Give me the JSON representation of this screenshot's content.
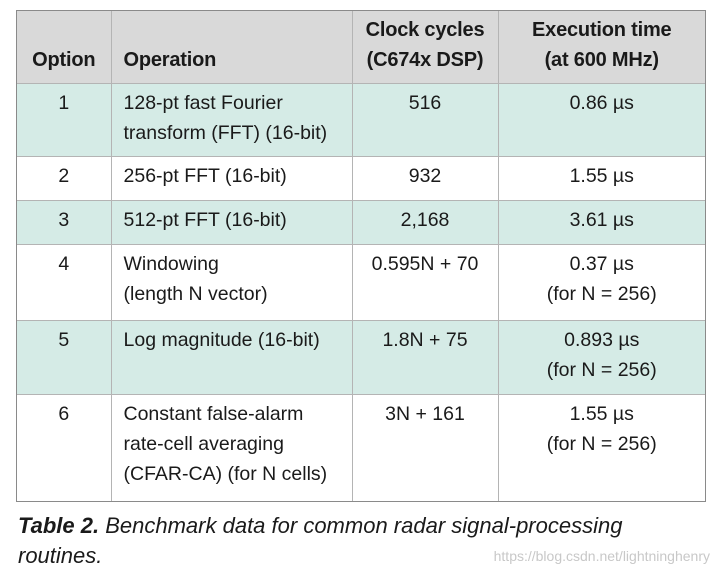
{
  "table": {
    "headers": [
      {
        "lines": [
          "Option"
        ]
      },
      {
        "lines": [
          "Operation"
        ]
      },
      {
        "lines": [
          "Clock cycles",
          "(C674x DSP)"
        ]
      },
      {
        "lines": [
          "Execution time",
          "(at 600 MHz)"
        ]
      }
    ],
    "rows": [
      {
        "option": "1",
        "operation": [
          "128-pt fast Fourier",
          "transform (FFT) (16-bit)"
        ],
        "cycles": "516",
        "time": [
          "0.86 µs"
        ]
      },
      {
        "option": "2",
        "operation": [
          "256-pt FFT (16-bit)"
        ],
        "cycles": "932",
        "time": [
          "1.55 µs"
        ]
      },
      {
        "option": "3",
        "operation": [
          "512-pt FFT (16-bit)"
        ],
        "cycles": "2,168",
        "time": [
          "3.61 µs"
        ]
      },
      {
        "option": "4",
        "operation": [
          "Windowing",
          "(length N vector)"
        ],
        "cycles": "0.595N + 70",
        "time": [
          "0.37 µs",
          "(for N = 256)"
        ]
      },
      {
        "option": "5",
        "operation": [
          "Log magnitude (16-bit)"
        ],
        "cycles": "1.8N + 75",
        "time": [
          "0.893 µs",
          "(for N = 256)"
        ]
      },
      {
        "option": "6",
        "operation": [
          "Constant false-alarm",
          "rate-cell averaging",
          "(CFAR-CA) (for N cells)"
        ],
        "cycles": "3N + 161",
        "time": [
          "1.55 µs",
          "(for N = 256)"
        ]
      }
    ]
  },
  "caption": {
    "label": "Table 2.",
    "text": " Benchmark data for common radar signal-processing routines."
  },
  "watermark": "https://blog.csdn.net/lightninghenry",
  "colors": {
    "header_bg": "#d9d9d9",
    "teal_row": "#d5ebe6",
    "white_row": "#ffffff"
  }
}
